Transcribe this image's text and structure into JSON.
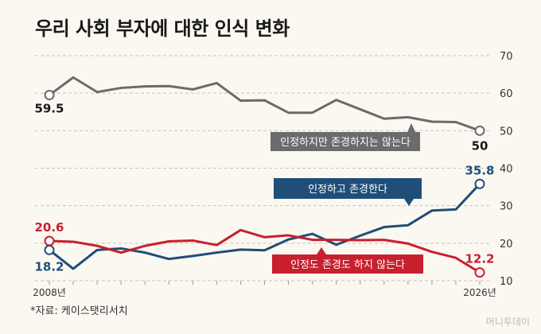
{
  "title": "우리 사회 부자에 대한 인식 변화",
  "source": "*자료: 케이스탯리서치",
  "watermark": "머니투데이",
  "chart_data": {
    "type": "line",
    "x": [
      2008,
      2009,
      2010,
      2011,
      2012,
      2013,
      2014,
      2015,
      2016,
      2017,
      2018,
      2019,
      2020,
      2021,
      2022,
      2023,
      2024,
      2025,
      2026
    ],
    "x_tick_labels": [
      "2008년",
      "2026년"
    ],
    "yticks": [
      10,
      20,
      30,
      40,
      50,
      60,
      70
    ],
    "ylim": [
      10,
      70
    ],
    "grid": true,
    "series": [
      {
        "name": "인정하지만 존경하지는 않는다",
        "color": "#6b6b6b",
        "values": [
          59.5,
          64.2,
          60.3,
          61.4,
          61.8,
          61.9,
          61.0,
          62.7,
          58.0,
          58.1,
          54.8,
          54.8,
          58.2,
          55.7,
          53.2,
          53.6,
          52.4,
          52.3,
          50
        ],
        "start_label": "59.5",
        "end_label": "50"
      },
      {
        "name": "인정하고 존경한다",
        "color": "#1f4e79",
        "values": [
          18.2,
          13.2,
          18.2,
          18.6,
          17.5,
          15.8,
          16.6,
          17.5,
          18.3,
          18.1,
          21.0,
          22.5,
          19.6,
          22.0,
          24.3,
          24.8,
          28.7,
          29.0,
          35.8
        ],
        "start_label": "18.2",
        "end_label": "35.8"
      },
      {
        "name": "인정도 존경도 하지 않는다",
        "color": "#c8202d",
        "values": [
          20.6,
          20.4,
          19.3,
          17.5,
          19.3,
          20.5,
          20.7,
          19.5,
          23.5,
          21.6,
          22.1,
          20.9,
          20.9,
          20.8,
          20.9,
          19.9,
          17.7,
          16.1,
          12.2
        ],
        "start_label": "20.6",
        "end_label": "12.2"
      }
    ]
  }
}
